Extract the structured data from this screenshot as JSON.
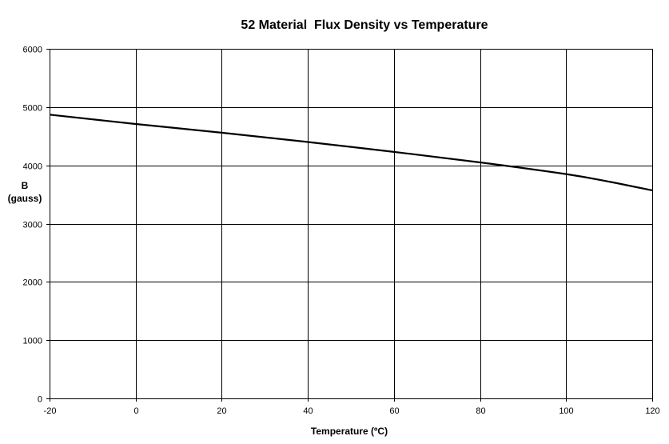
{
  "chart_data": {
    "type": "line",
    "title": "52 Material  Flux Density vs Temperature",
    "xlabel": "Temperature  (ºC)",
    "ylabel_line1": "B",
    "ylabel_line2": "(gauss)",
    "xlim": [
      -20,
      120
    ],
    "ylim": [
      0,
      6000
    ],
    "x_ticks": [
      -20,
      0,
      20,
      40,
      60,
      80,
      100,
      120
    ],
    "y_ticks": [
      0,
      1000,
      2000,
      3000,
      4000,
      5000,
      6000
    ],
    "grid": true,
    "legend": "none",
    "series": [
      {
        "color": "#000000",
        "x": [
          -20,
          0,
          20,
          40,
          60,
          80,
          100,
          110,
          120
        ],
        "y": [
          4870,
          4710,
          4560,
          4400,
          4230,
          4050,
          3850,
          3720,
          3570
        ]
      }
    ]
  }
}
